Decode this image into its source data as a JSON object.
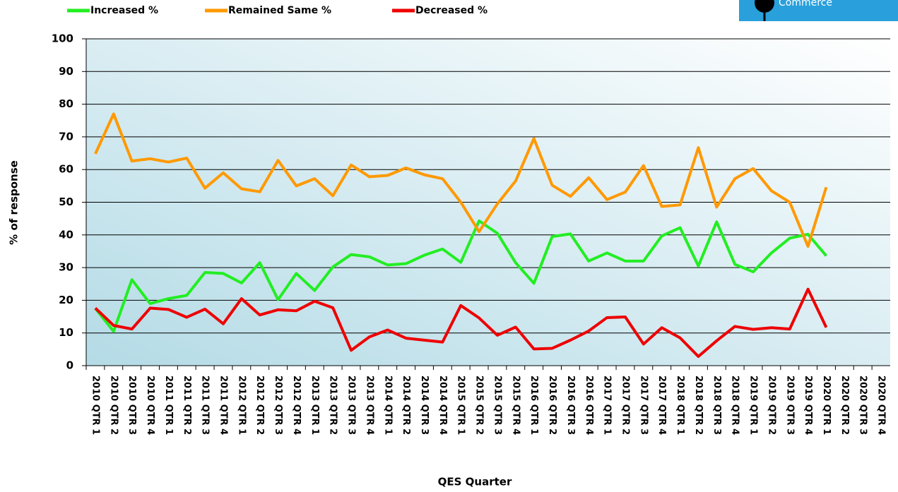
{
  "logo": {
    "text": "Commerce"
  },
  "chart_data": {
    "type": "line",
    "y_label": "% of response",
    "x_label": "QES Quarter",
    "categories": [
      "2010 QTR 1",
      "2010 QTR 2",
      "2010 QTR 3",
      "2010 QTR 4",
      "2011 QTR 1",
      "2011 QTR 2",
      "2011 QTR 3",
      "2011 QTR 4",
      "2012 QTR 1",
      "2012 QTR 2",
      "2012 QTR 3",
      "2012 QTR 4",
      "2013 QTR 1",
      "2013 QTR 2",
      "2013 QTR 3",
      "2013 QTR 4",
      "2014 QTR 1",
      "2014 QTR 2",
      "2014 QTR 3",
      "2014 QTR 4",
      "2015 QTR 1",
      "2015 QTR 2",
      "2015 QTR 3",
      "2015 QTR 4",
      "2016 QTR 1",
      "2016 QTR 2",
      "2016 QTR 3",
      "2016 QTR 4",
      "2017 QTR 1",
      "2017 QTR 2",
      "2017 QTR 3",
      "2017 QTR 4",
      "2018 QTR 1",
      "2018 QTR 2",
      "2018 QTR 3",
      "2018 QTR 4",
      "2019 QTR 1",
      "2019 QTR 2",
      "2019 QTR 3",
      "2019 QTR 4",
      "2020 QTR 1",
      "2020 QTR 2",
      "2020 QTR 3",
      "2020 QTR 4"
    ],
    "series": [
      {
        "name": "Increased %",
        "color": "#22ee22",
        "values": [
          17.5,
          10.5,
          26.3,
          19,
          20.5,
          21.5,
          28.5,
          28.2,
          25.3,
          31.5,
          20.2,
          28.2,
          23,
          30.2,
          34,
          33.3,
          30.8,
          31.2,
          33.8,
          35.7,
          31.6,
          44.3,
          40.5,
          31.5,
          25.2,
          39.5,
          40.3,
          32,
          34.5,
          32,
          32,
          39.7,
          42.2,
          30.5,
          44,
          31,
          28.7,
          34.5,
          39,
          40.2,
          33.6,
          null,
          null,
          null
        ]
      },
      {
        "name": "Remained Same %",
        "color": "#ff9900",
        "values": [
          64.8,
          77,
          62.6,
          63.3,
          62.3,
          63.5,
          54.3,
          59,
          54.1,
          53.2,
          62.8,
          55,
          57.2,
          52,
          61.4,
          57.8,
          58.2,
          60.5,
          58.4,
          57.2,
          50,
          41,
          49.5,
          56.5,
          69.5,
          55.2,
          51.8,
          57.5,
          50.8,
          53.1,
          61.2,
          48.7,
          49.2,
          66.7,
          48.5,
          57.2,
          60.3,
          53.5,
          50,
          36.5,
          54.6,
          null,
          null,
          null
        ]
      },
      {
        "name": "Decreased %",
        "color": "#ee0000",
        "values": [
          17.6,
          12.3,
          11.2,
          17.6,
          17.2,
          14.8,
          17.3,
          12.8,
          20.5,
          15.5,
          17.1,
          16.8,
          19.7,
          17.7,
          4.7,
          8.8,
          10.9,
          8.4,
          7.8,
          7.2,
          18.4,
          14.6,
          9.3,
          11.8,
          5.1,
          5.3,
          7.8,
          10.6,
          14.7,
          14.9,
          6.6,
          11.6,
          8.5,
          2.8,
          7.6,
          12,
          11.1,
          11.6,
          11.2,
          23.4,
          11.7,
          null,
          null,
          null
        ]
      }
    ],
    "ylim": [
      0,
      100
    ],
    "yticks": [
      0,
      10,
      20,
      30,
      40,
      50,
      60,
      70,
      80,
      90,
      100
    ],
    "grid": true
  }
}
